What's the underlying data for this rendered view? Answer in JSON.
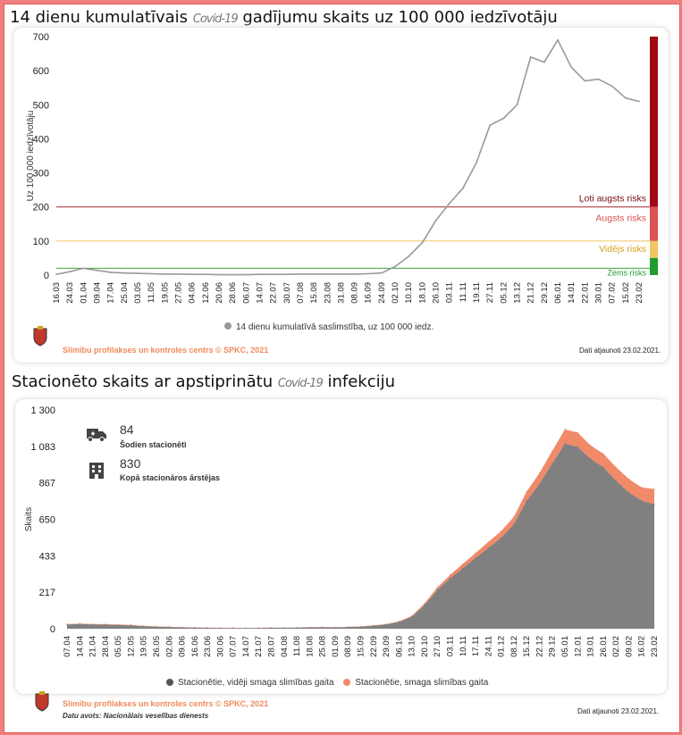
{
  "charts": {
    "c1_title_a": "14 dienu kumulatīvais",
    "c1_title_blur": "Covid-19",
    "c1_title_b": "gadījumu skaits uz 100 000 iedzīvotāju",
    "c2_title_a": "Stacionēto skaits ar apstiprinātu",
    "c2_title_blur": "Covid-19",
    "c2_title_b": "infekciju"
  },
  "risk_labels": {
    "very_high": "Ļoti augsts risks",
    "high": "Augsts risks",
    "medium": "Vidējs risks",
    "low": "Zems risks"
  },
  "colors": {
    "very_high": "#9e0a12",
    "high": "#d9534f",
    "medium": "#f2c462",
    "low": "#1e9e2e",
    "line": "#999999",
    "area_moderate": "#808080",
    "area_severe": "#f08a68",
    "accent": "#ef8a5a"
  },
  "stats": {
    "today_value": "84",
    "today_label": "Šodien stacionēti",
    "total_value": "830",
    "total_label": "Kopā stacionāros ārstējas"
  },
  "footer": {
    "source": "Slimību profilakses un kontroles centrs © SPKC, 2021",
    "data_source": "Datu avots: Nacionālais veselības dienests",
    "updated1": "Dati atjaunoti 23.02.2021.",
    "updated2": "Dati atjaunoti 23.02.2021."
  },
  "chart_data": [
    {
      "type": "line",
      "ylabel": "Uz 100 000 iedzīvotāju",
      "ylim": [
        0,
        700
      ],
      "yticks": [
        0,
        100,
        200,
        300,
        400,
        500,
        600,
        700
      ],
      "grid": false,
      "legend_position": "bottom",
      "categories": [
        "16.03",
        "24.03",
        "01.04",
        "09.04",
        "17.04",
        "25.04",
        "03.05",
        "11.05",
        "19.05",
        "27.05",
        "04.06",
        "12.06",
        "20.06",
        "28.06",
        "06.07",
        "14.07",
        "22.07",
        "30.07",
        "07.08",
        "15.08",
        "23.08",
        "31.08",
        "08.09",
        "16.09",
        "24.09",
        "02.10",
        "10.10",
        "18.10",
        "26.10",
        "03.11",
        "11.11",
        "19.11",
        "27.11",
        "05.12",
        "13.12",
        "21.12",
        "29.12",
        "06.01",
        "14.01",
        "22.01",
        "30.01",
        "07.02",
        "15.02",
        "23.02"
      ],
      "series": [
        {
          "name": "14 dienu kumulatīvā saslimstība, uz 100 000 iedz.",
          "values": [
            2,
            10,
            20,
            14,
            8,
            6,
            5,
            4,
            3,
            3,
            2,
            2,
            1,
            1,
            1,
            2,
            2,
            2,
            3,
            3,
            3,
            3,
            3,
            4,
            6,
            25,
            55,
            95,
            160,
            210,
            255,
            330,
            440,
            460,
            500,
            640,
            625,
            690,
            610,
            570,
            575,
            555,
            520,
            510
          ]
        }
      ],
      "thresholds": [
        {
          "value": 200,
          "label": "Ļoti augsts risks"
        },
        {
          "value": 100,
          "label": "Augsts risks"
        },
        {
          "value": 50,
          "label": "Vidējs risks"
        },
        {
          "value": 20,
          "label": "Zems risks"
        }
      ]
    },
    {
      "type": "area",
      "ylabel": "Skaits",
      "ylim": [
        0,
        1300
      ],
      "yticks": [
        "0",
        "217",
        "433",
        "650",
        "867",
        "1 083",
        "1 300"
      ],
      "grid": false,
      "legend_position": "bottom",
      "categories": [
        "07.04",
        "14.04",
        "21.04",
        "28.04",
        "05.05",
        "12.05",
        "19.05",
        "26.05",
        "02.06",
        "09.06",
        "16.06",
        "23.06",
        "30.06",
        "07.07",
        "14.07",
        "21.07",
        "28.07",
        "04.08",
        "11.08",
        "18.08",
        "25.08",
        "01.09",
        "08.09",
        "15.09",
        "22.09",
        "29.09",
        "06.10",
        "13.10",
        "20.10",
        "27.10",
        "03.11",
        "10.11",
        "17.11",
        "24.11",
        "01.12",
        "08.12",
        "15.12",
        "22.12",
        "29.12",
        "05.01",
        "12.01",
        "19.01",
        "26.01",
        "02.02",
        "09.02",
        "16.02",
        "23.02"
      ],
      "series": [
        {
          "name": "Stacionētie, vidēji smaga slimības gaita",
          "values": [
            25,
            28,
            25,
            24,
            22,
            20,
            15,
            12,
            10,
            8,
            7,
            6,
            5,
            5,
            4,
            5,
            6,
            6,
            7,
            8,
            9,
            8,
            10,
            12,
            18,
            25,
            40,
            70,
            140,
            230,
            300,
            360,
            420,
            480,
            540,
            620,
            760,
            860,
            980,
            1100,
            1080,
            1010,
            960,
            880,
            810,
            760,
            740
          ]
        },
        {
          "name": "Stacionētie, smaga slimības gaita",
          "values": [
            3,
            3,
            3,
            3,
            3,
            3,
            2,
            2,
            2,
            1,
            1,
            1,
            1,
            1,
            1,
            1,
            1,
            1,
            1,
            1,
            1,
            1,
            1,
            2,
            2,
            3,
            4,
            6,
            10,
            15,
            20,
            25,
            30,
            35,
            40,
            45,
            55,
            65,
            75,
            85,
            85,
            80,
            80,
            80,
            80,
            80,
            90
          ]
        }
      ]
    }
  ]
}
